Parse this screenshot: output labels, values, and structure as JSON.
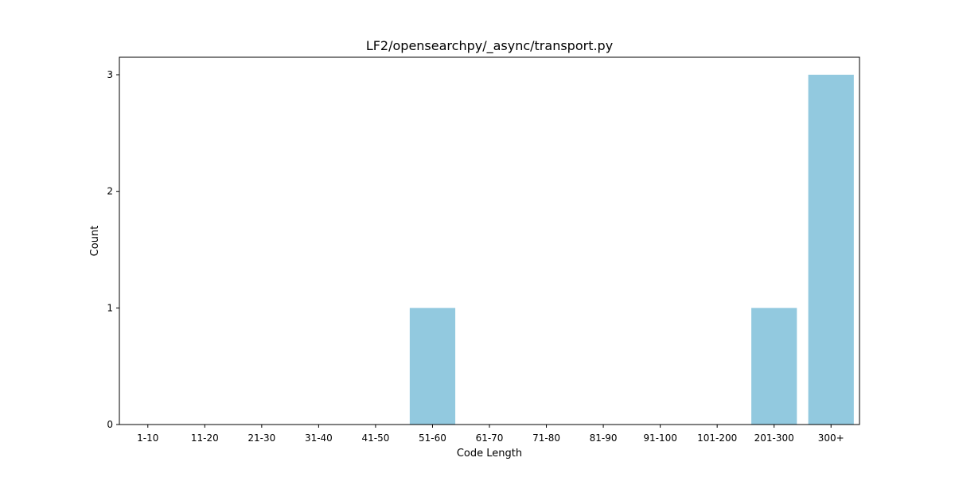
{
  "chart_data": {
    "type": "bar",
    "title": "LF2/opensearchpy/_async/transport.py",
    "xlabel": "Code Length",
    "ylabel": "Count",
    "categories": [
      "1-10",
      "11-20",
      "21-30",
      "31-40",
      "41-50",
      "51-60",
      "61-70",
      "71-80",
      "81-90",
      "91-100",
      "101-200",
      "201-300",
      "300+"
    ],
    "values": [
      0,
      0,
      0,
      0,
      0,
      1,
      0,
      0,
      0,
      0,
      0,
      1,
      3
    ],
    "ylim": [
      0,
      3.15
    ],
    "yticks": [
      0,
      1,
      2,
      3
    ],
    "bar_color": "#92c9df",
    "grid": false,
    "legend": "none"
  }
}
